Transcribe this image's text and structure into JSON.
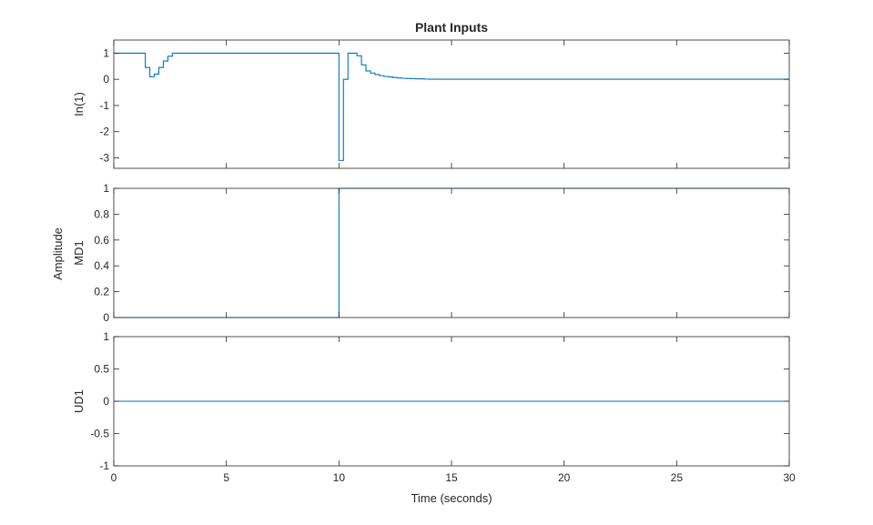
{
  "figure": {
    "title": "Plant Inputs",
    "xlabel": "Time (seconds)",
    "shared_ylabel": "Amplitude",
    "line_color": "#0072bd",
    "axis_color": "#262626"
  },
  "chart_data": [
    {
      "type": "line",
      "step": true,
      "ylabel": "In(1)",
      "xlim": [
        0,
        30
      ],
      "ylim": [
        -3.4,
        1.5
      ],
      "yticks": [
        1,
        0,
        -1,
        -2,
        -3
      ],
      "ytick_labels": [
        "1",
        "0",
        "-1",
        "-2",
        "-3"
      ],
      "xticks": [
        0,
        5,
        10,
        15,
        20,
        25,
        30
      ],
      "xticks_labeled": false,
      "grid": false,
      "x": [
        0,
        1.4,
        1.6,
        1.8,
        2.0,
        2.2,
        2.4,
        2.6,
        2.8,
        9.9,
        10.0,
        10.2,
        10.4,
        10.6,
        10.8,
        11.0,
        11.2,
        11.4,
        11.6,
        11.8,
        12.0,
        12.2,
        12.4,
        12.6,
        12.8,
        13.0,
        13.2,
        13.4,
        13.6,
        13.8,
        14.0,
        30
      ],
      "y": [
        1,
        0.45,
        0.1,
        0.2,
        0.45,
        0.7,
        0.88,
        1.0,
        1.0,
        1.0,
        -3.1,
        0.0,
        1.0,
        1.0,
        0.9,
        0.55,
        0.32,
        0.24,
        0.18,
        0.14,
        0.11,
        0.09,
        0.07,
        0.05,
        0.04,
        0.03,
        0.025,
        0.02,
        0.015,
        0.01,
        0.005,
        0.0
      ]
    },
    {
      "type": "line",
      "step": true,
      "ylabel": "MD1",
      "xlim": [
        0,
        30
      ],
      "ylim": [
        0,
        1
      ],
      "yticks": [
        1,
        0.8,
        0.6,
        0.4,
        0.2,
        0
      ],
      "ytick_labels": [
        "1",
        "0.8",
        "0.6",
        "0.4",
        "0.2",
        "0"
      ],
      "xticks": [
        0,
        5,
        10,
        15,
        20,
        25,
        30
      ],
      "xticks_labeled": false,
      "grid": false,
      "x": [
        0,
        10,
        30
      ],
      "y": [
        0,
        1,
        1
      ]
    },
    {
      "type": "line",
      "step": true,
      "ylabel": "UD1",
      "xlim": [
        0,
        30
      ],
      "ylim": [
        -1,
        1
      ],
      "yticks": [
        1,
        0.5,
        0,
        -0.5,
        -1
      ],
      "ytick_labels": [
        "1",
        "0.5",
        "0",
        "-0.5",
        "-1"
      ],
      "xticks": [
        0,
        5,
        10,
        15,
        20,
        25,
        30
      ],
      "xtick_labels": [
        "0",
        "5",
        "10",
        "15",
        "20",
        "25",
        "30"
      ],
      "xticks_labeled": true,
      "grid": false,
      "x": [
        0,
        30
      ],
      "y": [
        0,
        0
      ]
    }
  ]
}
